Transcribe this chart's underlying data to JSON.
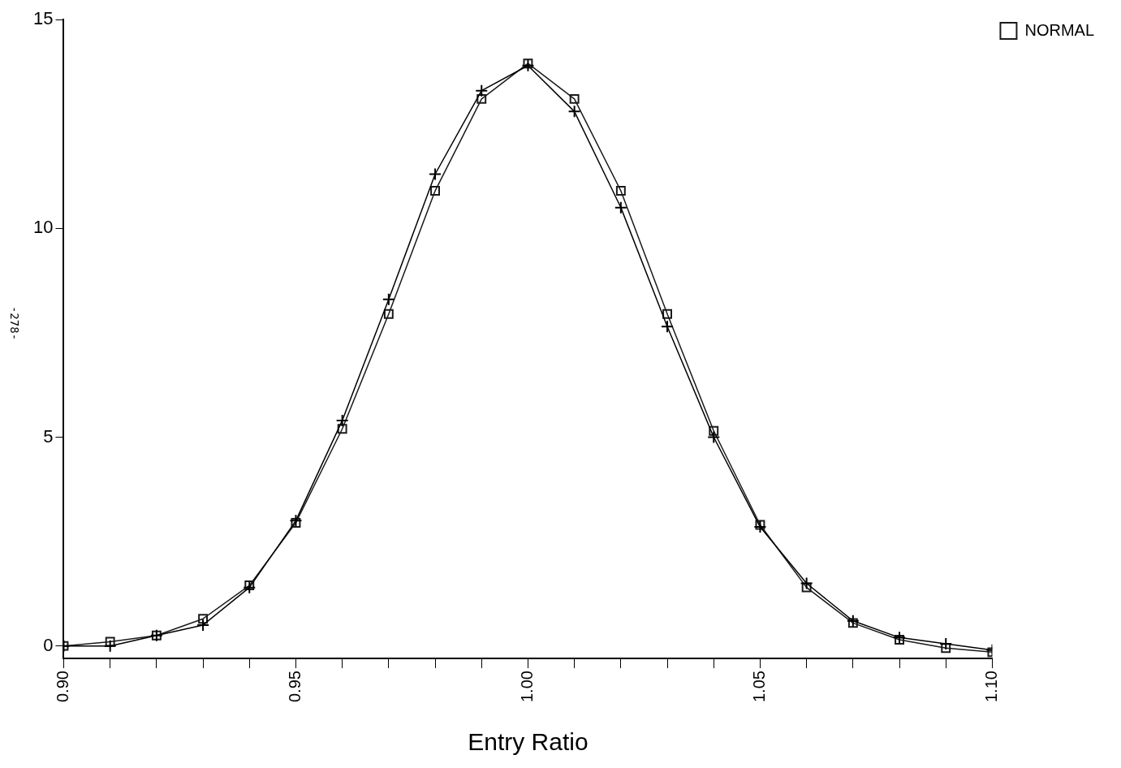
{
  "chart_data": {
    "type": "line",
    "xlabel": "Entry Ratio",
    "annotations": [
      "-278-"
    ],
    "x": [
      0.9,
      0.91,
      0.92,
      0.93,
      0.94,
      0.95,
      0.96,
      0.97,
      0.98,
      0.99,
      1.0,
      1.01,
      1.02,
      1.03,
      1.04,
      1.05,
      1.06,
      1.07,
      1.08,
      1.09,
      1.1
    ],
    "series": [
      {
        "color": "#000000",
        "marker": "cross",
        "values": [
          0,
          0,
          0.25,
          0.5,
          1.4,
          3.0,
          5.4,
          8.3,
          11.3,
          13.3,
          13.9,
          12.8,
          10.5,
          7.65,
          5.0,
          2.85,
          1.5,
          0.6,
          0.2,
          0.05,
          -0.1
        ]
      },
      {
        "name": "NORMAL",
        "color": "#1a1a1a",
        "marker": "square",
        "values": [
          0,
          0.1,
          0.25,
          0.65,
          1.45,
          2.95,
          5.2,
          7.95,
          10.9,
          13.1,
          13.95,
          13.1,
          10.9,
          7.95,
          5.15,
          2.9,
          1.4,
          0.55,
          0.15,
          -0.05,
          -0.15
        ]
      }
    ],
    "xlim": [
      0.9,
      1.1
    ],
    "xticks": [
      {
        "value": 0.9,
        "label": "0.90"
      },
      {
        "value": 0.91,
        "label": null
      },
      {
        "value": 0.92,
        "label": null
      },
      {
        "value": 0.93,
        "label": null
      },
      {
        "value": 0.94,
        "label": null
      },
      {
        "value": 0.95,
        "label": "0.95"
      },
      {
        "value": 0.96,
        "label": null
      },
      {
        "value": 0.97,
        "label": null
      },
      {
        "value": 0.98,
        "label": null
      },
      {
        "value": 0.99,
        "label": null
      },
      {
        "value": 1.0,
        "label": "1.00"
      },
      {
        "value": 1.01,
        "label": null
      },
      {
        "value": 1.02,
        "label": null
      },
      {
        "value": 1.03,
        "label": null
      },
      {
        "value": 1.04,
        "label": null
      },
      {
        "value": 1.05,
        "label": "1.05"
      },
      {
        "value": 1.06,
        "label": null
      },
      {
        "value": 1.07,
        "label": null
      },
      {
        "value": 1.08,
        "label": null
      },
      {
        "value": 1.09,
        "label": null
      },
      {
        "value": 1.1,
        "label": "1.10"
      }
    ],
    "ylim": [
      -0.3,
      15
    ],
    "yticks": [
      0,
      5,
      10,
      15
    ],
    "grid": false,
    "legend": "top right",
    "line_style": "solid"
  }
}
